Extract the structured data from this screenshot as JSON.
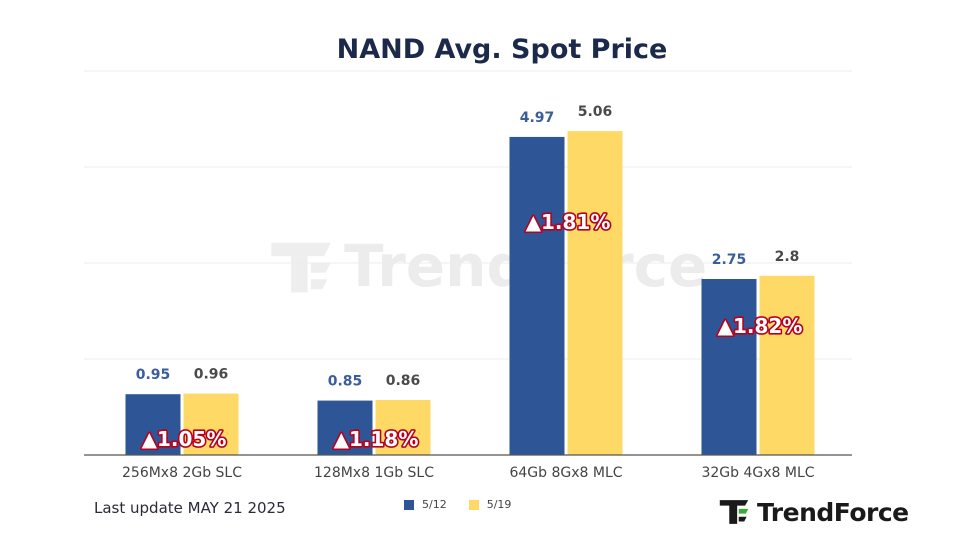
{
  "colors": {
    "series_1": "#2e5596",
    "series_2": "#fed966",
    "label_series_1": "#3a5e9c",
    "label_series_2": "#4a4a4a",
    "change_text": "#ffffff",
    "change_stroke": "#b8001e",
    "axis": "#555555",
    "logo_green": "#3aaa35"
  },
  "chart_data": {
    "type": "bar",
    "title": "NAND Avg. Spot Price",
    "categories": [
      "256Mx8 2Gb SLC",
      "128Mx8 1Gb SLC",
      "64Gb 8Gx8 MLC",
      "32Gb 4Gx8 MLC"
    ],
    "series": [
      {
        "name": "5/12",
        "values": [
          0.95,
          0.85,
          4.97,
          2.75
        ],
        "labels": [
          "0.95",
          "0.85",
          "4.97",
          "2.75"
        ]
      },
      {
        "name": "5/19",
        "values": [
          0.96,
          0.86,
          5.06,
          2.8
        ],
        "labels": [
          "0.96",
          "0.86",
          "5.06",
          "2.8"
        ]
      }
    ],
    "change_labels": [
      "▲1.05%",
      "▲1.18%",
      "▲1.81%",
      "▲1.82%"
    ],
    "ylim": [
      0,
      6
    ],
    "gridlines": [
      0,
      1.5,
      3,
      4.5,
      6
    ],
    "grid": true,
    "legend_position": "bottom"
  },
  "footer": {
    "last_update": "Last update MAY 21 2025",
    "logo_text": "TrendForce"
  },
  "watermark": {
    "text": "TrendForce"
  }
}
